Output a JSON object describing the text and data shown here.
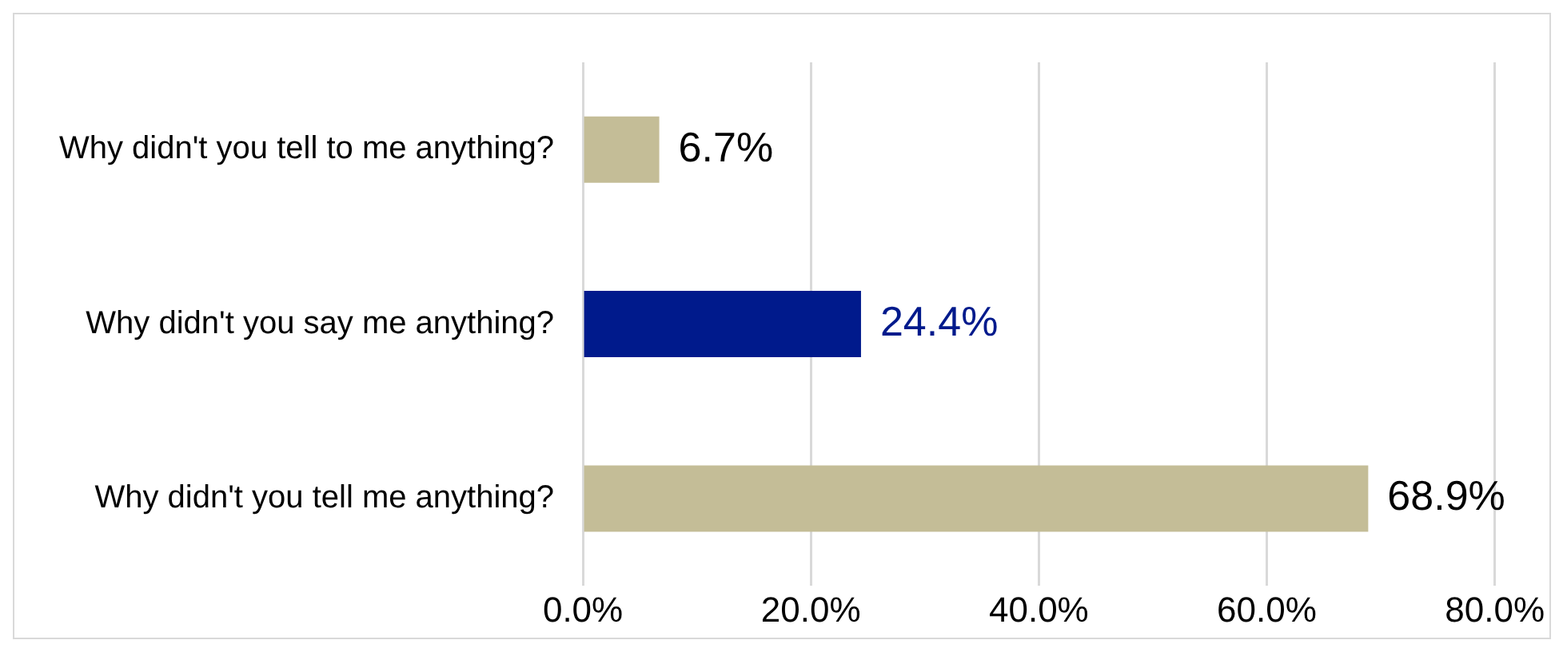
{
  "chart_data": {
    "type": "bar",
    "orientation": "horizontal",
    "categories": [
      "Why didn't you tell to me anything?",
      "Why didn't you say me anything?",
      "Why didn't you tell me anything?"
    ],
    "values": [
      6.7,
      24.4,
      68.9
    ],
    "colors": [
      "#c4bd97",
      "#001a8c",
      "#c4bd97"
    ],
    "value_labels": [
      "6.7%",
      "24.4%",
      "68.9%"
    ],
    "xlim": [
      0,
      80
    ],
    "xticks": [
      {
        "value": 0,
        "label": "0.0%"
      },
      {
        "value": 20,
        "label": "20.0%"
      },
      {
        "value": 40,
        "label": "40.0%"
      },
      {
        "value": 60,
        "label": "60.0%"
      },
      {
        "value": 80,
        "label": "80.0%"
      }
    ],
    "grid": "x",
    "legend": false
  }
}
